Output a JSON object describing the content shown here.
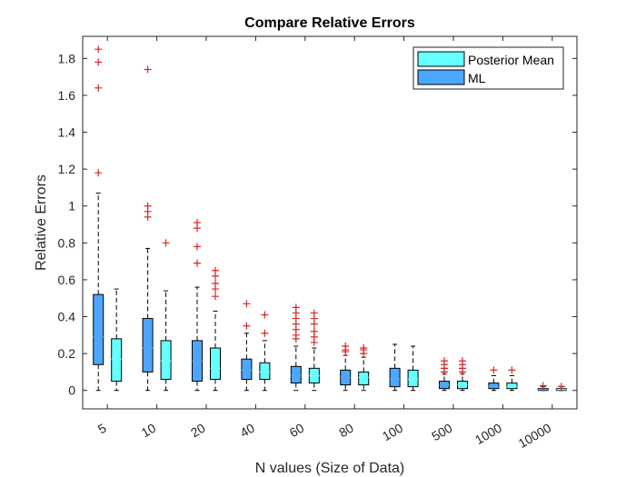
{
  "chart_data": {
    "type": "boxplot",
    "title": "Compare Relative Errors",
    "xlabel": "N values (Size of Data)",
    "ylabel": "Relative Errors",
    "categories": [
      "5",
      "10",
      "20",
      "40",
      "60",
      "80",
      "100",
      "500",
      "1000",
      "10000"
    ],
    "ylim": [
      -0.1,
      1.92
    ],
    "yticks": [
      0,
      0.2,
      0.4,
      0.6,
      0.8,
      1,
      1.2,
      1.4,
      1.6,
      1.8
    ],
    "ytick_labels": [
      "0",
      "0.2",
      "0.4",
      "0.6",
      "0.8",
      "1",
      "1.2",
      "1.4",
      "1.6",
      "1.8"
    ],
    "legend_position": "top-right",
    "series": [
      {
        "name": "ML",
        "color": "#4da6ff",
        "boxes": [
          {
            "min": 0.0,
            "q1": 0.14,
            "median": 0.29,
            "q3": 0.52,
            "max": 1.07,
            "outliers": [
              1.18,
              1.64,
              1.78,
              1.85
            ]
          },
          {
            "min": 0.0,
            "q1": 0.1,
            "median": 0.23,
            "q3": 0.39,
            "max": 0.77,
            "outliers": [
              0.94,
              0.97,
              1.0,
              1.74
            ]
          },
          {
            "min": 0.0,
            "q1": 0.05,
            "median": 0.16,
            "q3": 0.27,
            "max": 0.56,
            "outliers": [
              0.69,
              0.78,
              0.88,
              0.91
            ]
          },
          {
            "min": 0.0,
            "q1": 0.06,
            "median": 0.11,
            "q3": 0.17,
            "max": 0.31,
            "outliers": [
              0.35,
              0.47
            ]
          },
          {
            "min": 0.0,
            "q1": 0.04,
            "median": 0.08,
            "q3": 0.13,
            "max": 0.24,
            "outliers": [
              0.28,
              0.3,
              0.33,
              0.36,
              0.39,
              0.42,
              0.45
            ]
          },
          {
            "min": 0.0,
            "q1": 0.03,
            "median": 0.07,
            "q3": 0.11,
            "max": 0.19,
            "outliers": [
              0.21,
              0.22,
              0.24
            ]
          },
          {
            "min": 0.0,
            "q1": 0.02,
            "median": 0.06,
            "q3": 0.12,
            "max": 0.25,
            "outliers": []
          },
          {
            "min": 0.0,
            "q1": 0.01,
            "median": 0.03,
            "q3": 0.05,
            "max": 0.09,
            "outliers": [
              0.1,
              0.12,
              0.14,
              0.16
            ]
          },
          {
            "min": 0.0,
            "q1": 0.01,
            "median": 0.02,
            "q3": 0.04,
            "max": 0.08,
            "outliers": [
              0.11
            ]
          },
          {
            "min": 0.0,
            "q1": 0.0,
            "median": 0.005,
            "q3": 0.01,
            "max": 0.02,
            "outliers": [
              0.025
            ]
          }
        ]
      },
      {
        "name": "Posterior Mean",
        "color": "#66ffff",
        "boxes": [
          {
            "min": 0.0,
            "q1": 0.05,
            "median": 0.17,
            "q3": 0.28,
            "max": 0.55,
            "outliers": []
          },
          {
            "min": 0.0,
            "q1": 0.06,
            "median": 0.16,
            "q3": 0.27,
            "max": 0.54,
            "outliers": [
              0.8
            ]
          },
          {
            "min": 0.0,
            "q1": 0.06,
            "median": 0.12,
            "q3": 0.23,
            "max": 0.43,
            "outliers": [
              0.51,
              0.55,
              0.58,
              0.62,
              0.65
            ]
          },
          {
            "min": 0.0,
            "q1": 0.06,
            "median": 0.1,
            "q3": 0.15,
            "max": 0.27,
            "outliers": [
              0.31,
              0.41
            ]
          },
          {
            "min": 0.0,
            "q1": 0.04,
            "median": 0.08,
            "q3": 0.12,
            "max": 0.23,
            "outliers": [
              0.26,
              0.29,
              0.32,
              0.36,
              0.39,
              0.42
            ]
          },
          {
            "min": 0.0,
            "q1": 0.03,
            "median": 0.07,
            "q3": 0.1,
            "max": 0.18,
            "outliers": [
              0.2,
              0.22,
              0.23
            ]
          },
          {
            "min": 0.0,
            "q1": 0.02,
            "median": 0.06,
            "q3": 0.11,
            "max": 0.24,
            "outliers": []
          },
          {
            "min": 0.0,
            "q1": 0.01,
            "median": 0.03,
            "q3": 0.05,
            "max": 0.09,
            "outliers": [
              0.1,
              0.12,
              0.14,
              0.16
            ]
          },
          {
            "min": 0.0,
            "q1": 0.01,
            "median": 0.02,
            "q3": 0.04,
            "max": 0.08,
            "outliers": [
              0.11
            ]
          },
          {
            "min": 0.0,
            "q1": 0.0,
            "median": 0.005,
            "q3": 0.01,
            "max": 0.02,
            "outliers": [
              0.022
            ]
          }
        ]
      }
    ],
    "outlier_color": "#d62728"
  }
}
